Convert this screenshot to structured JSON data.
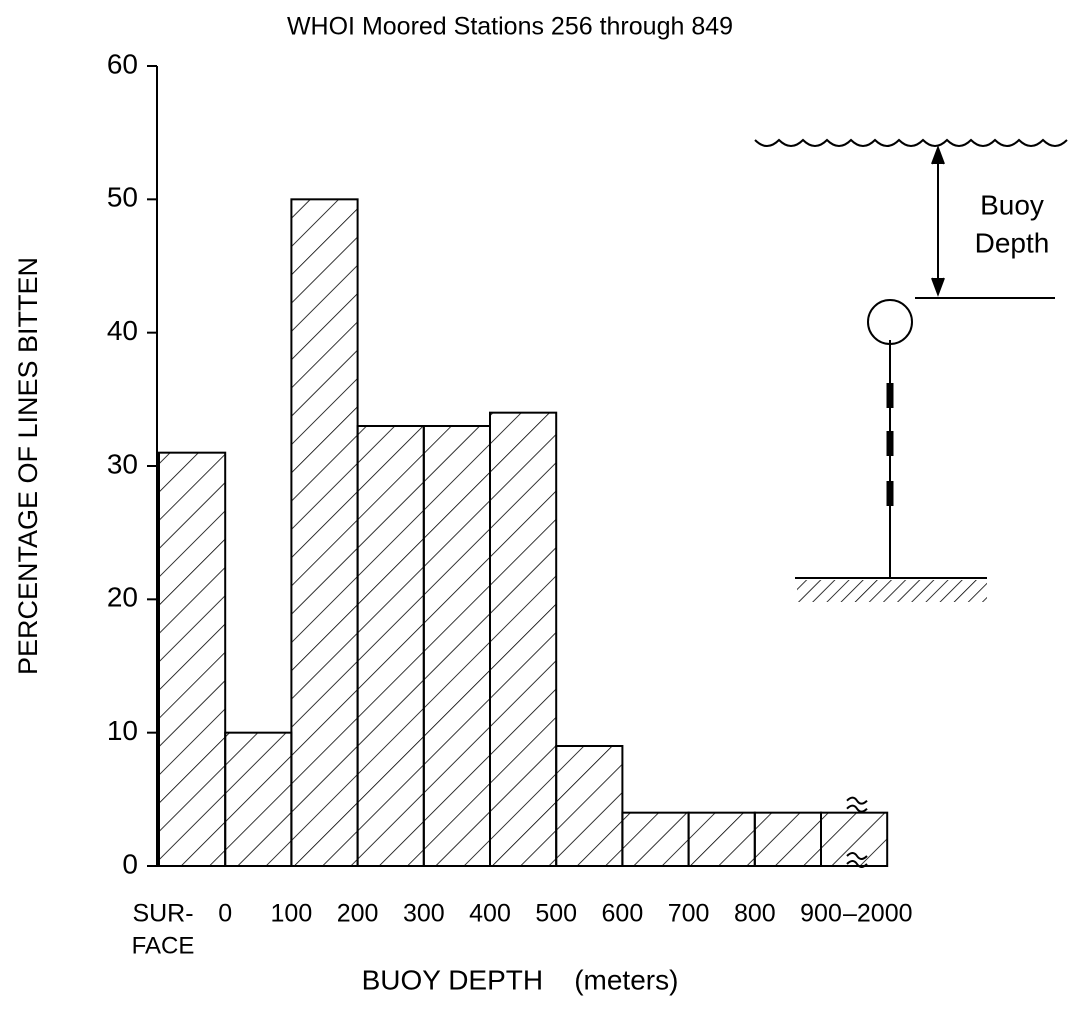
{
  "chart_data": {
    "type": "bar",
    "title": "WHOI Moored Stations 256 through 849",
    "y_label": "PERCENTAGE OF LINES BITTEN",
    "x_label": "BUOY DEPTH    (meters)",
    "edge_labels": [
      "SUR-",
      "0",
      "100",
      "200",
      "300",
      "400",
      "500",
      "600",
      "700",
      "800",
      "900",
      "–2000"
    ],
    "edge_sublabel": "FACE",
    "values": [
      31,
      10,
      50,
      33,
      33,
      34,
      9,
      4,
      4,
      4,
      4
    ],
    "ylim": [
      0,
      60
    ],
    "yticks": [
      0,
      10,
      20,
      30,
      40,
      50,
      60
    ],
    "fill": "hatch",
    "color": "#000000",
    "annotations": [
      "Buoy",
      "Depth"
    ]
  }
}
